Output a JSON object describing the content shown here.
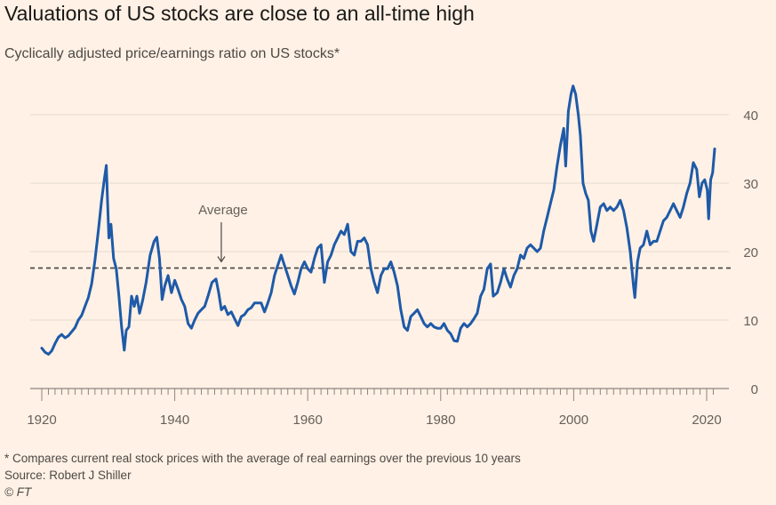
{
  "title": "Valuations of US stocks are close to an all-time high",
  "subtitle": "Cyclically adjusted price/earnings ratio on US stocks*",
  "footnote": "* Compares current real stock prices with the average of real earnings over the previous 10 years",
  "source": "Source: Robert J Shiller",
  "copyright": "© FT",
  "colors": {
    "background": "#FFF1E5",
    "series": "#1E5AA8",
    "grid": "#E6D9CE",
    "average_line": "#4D4845",
    "text": "#66605C"
  },
  "chart_data": {
    "type": "line",
    "title": "Valuations of US stocks are close to an all-time high",
    "subtitle": "Cyclically adjusted price/earnings ratio on US stocks*",
    "xlabel": "",
    "ylabel": "",
    "xlim": [
      1919,
      2022
    ],
    "ylim": [
      0,
      44
    ],
    "x_ticks": [
      1920,
      1940,
      1960,
      1980,
      2000,
      2020
    ],
    "y_ticks": [
      0,
      10,
      20,
      30,
      40
    ],
    "y_axis_position": "right",
    "grid": "horizontal",
    "average": {
      "label": "Average",
      "value": 17.6,
      "label_x": 1947
    },
    "series": [
      {
        "values": [
          [
            1920,
            5.9
          ],
          [
            1920.5,
            5.3
          ],
          [
            1921,
            5.0
          ],
          [
            1921.5,
            5.5
          ],
          [
            1922,
            6.6
          ],
          [
            1922.5,
            7.5
          ],
          [
            1923,
            7.9
          ],
          [
            1923.5,
            7.4
          ],
          [
            1924,
            7.7
          ],
          [
            1924.5,
            8.3
          ],
          [
            1925,
            8.9
          ],
          [
            1925.5,
            10.0
          ],
          [
            1926,
            10.7
          ],
          [
            1926.5,
            12.0
          ],
          [
            1927,
            13.3
          ],
          [
            1927.5,
            15.3
          ],
          [
            1928,
            18.7
          ],
          [
            1928.5,
            23.0
          ],
          [
            1929,
            27.5
          ],
          [
            1929.4,
            30.5
          ],
          [
            1929.7,
            32.6
          ],
          [
            1929.9,
            27.0
          ],
          [
            1930.1,
            22.0
          ],
          [
            1930.4,
            24.0
          ],
          [
            1930.8,
            19.0
          ],
          [
            1931.2,
            17.5
          ],
          [
            1931.6,
            13.5
          ],
          [
            1932,
            9.0
          ],
          [
            1932.4,
            5.6
          ],
          [
            1932.7,
            8.5
          ],
          [
            1933.1,
            9.0
          ],
          [
            1933.5,
            13.5
          ],
          [
            1933.9,
            12.0
          ],
          [
            1934.3,
            13.5
          ],
          [
            1934.7,
            11.0
          ],
          [
            1935.2,
            13.0
          ],
          [
            1935.7,
            15.5
          ],
          [
            1936.3,
            19.5
          ],
          [
            1936.9,
            21.5
          ],
          [
            1937.3,
            22.1
          ],
          [
            1937.7,
            19.0
          ],
          [
            1938.1,
            13.0
          ],
          [
            1938.5,
            15.0
          ],
          [
            1939,
            16.5
          ],
          [
            1939.5,
            14.0
          ],
          [
            1940,
            15.8
          ],
          [
            1940.5,
            14.5
          ],
          [
            1941,
            13.0
          ],
          [
            1941.5,
            12.0
          ],
          [
            1942,
            9.5
          ],
          [
            1942.5,
            8.8
          ],
          [
            1943,
            10.0
          ],
          [
            1943.5,
            11.0
          ],
          [
            1944,
            11.5
          ],
          [
            1944.5,
            12.0
          ],
          [
            1945,
            13.5
          ],
          [
            1945.6,
            15.5
          ],
          [
            1946.2,
            16.0
          ],
          [
            1946.6,
            14.0
          ],
          [
            1947,
            11.5
          ],
          [
            1947.5,
            12.0
          ],
          [
            1948,
            10.8
          ],
          [
            1948.5,
            11.2
          ],
          [
            1949,
            10.2
          ],
          [
            1949.5,
            9.2
          ],
          [
            1950,
            10.5
          ],
          [
            1950.5,
            10.8
          ],
          [
            1951,
            11.5
          ],
          [
            1951.5,
            11.8
          ],
          [
            1952,
            12.5
          ],
          [
            1952.5,
            12.5
          ],
          [
            1953,
            12.5
          ],
          [
            1953.5,
            11.2
          ],
          [
            1954,
            12.5
          ],
          [
            1954.5,
            14.0
          ],
          [
            1955,
            16.5
          ],
          [
            1955.5,
            18.0
          ],
          [
            1956,
            19.5
          ],
          [
            1956.5,
            18.0
          ],
          [
            1957,
            16.5
          ],
          [
            1957.5,
            15.0
          ],
          [
            1958,
            13.8
          ],
          [
            1958.5,
            15.5
          ],
          [
            1959,
            17.5
          ],
          [
            1959.5,
            18.5
          ],
          [
            1960,
            17.5
          ],
          [
            1960.5,
            17.0
          ],
          [
            1961,
            19.0
          ],
          [
            1961.5,
            20.5
          ],
          [
            1962,
            21.0
          ],
          [
            1962.5,
            15.5
          ],
          [
            1963,
            18.5
          ],
          [
            1963.5,
            19.5
          ],
          [
            1964,
            21.0
          ],
          [
            1964.5,
            22.0
          ],
          [
            1965,
            23.0
          ],
          [
            1965.5,
            22.5
          ],
          [
            1966,
            24.0
          ],
          [
            1966.5,
            20.0
          ],
          [
            1967,
            19.5
          ],
          [
            1967.5,
            21.5
          ],
          [
            1968,
            21.5
          ],
          [
            1968.5,
            22.0
          ],
          [
            1969,
            21.0
          ],
          [
            1969.5,
            17.5
          ],
          [
            1970,
            15.5
          ],
          [
            1970.5,
            14.0
          ],
          [
            1971,
            16.5
          ],
          [
            1971.5,
            17.5
          ],
          [
            1972,
            17.5
          ],
          [
            1972.5,
            18.5
          ],
          [
            1973,
            17.0
          ],
          [
            1973.5,
            15.0
          ],
          [
            1974,
            11.5
          ],
          [
            1974.5,
            9.0
          ],
          [
            1975,
            8.5
          ],
          [
            1975.5,
            10.5
          ],
          [
            1976,
            11.0
          ],
          [
            1976.5,
            11.5
          ],
          [
            1977,
            10.5
          ],
          [
            1977.5,
            9.5
          ],
          [
            1978,
            9.0
          ],
          [
            1978.5,
            9.5
          ],
          [
            1979,
            9.0
          ],
          [
            1979.5,
            8.8
          ],
          [
            1980,
            8.8
          ],
          [
            1980.5,
            9.5
          ],
          [
            1981,
            8.5
          ],
          [
            1981.5,
            8.0
          ],
          [
            1982,
            7.0
          ],
          [
            1982.5,
            6.9
          ],
          [
            1983,
            8.8
          ],
          [
            1983.5,
            9.5
          ],
          [
            1984,
            9.0
          ],
          [
            1984.5,
            9.5
          ],
          [
            1985,
            10.2
          ],
          [
            1985.5,
            11.0
          ],
          [
            1986,
            13.5
          ],
          [
            1986.5,
            14.5
          ],
          [
            1987,
            17.5
          ],
          [
            1987.5,
            18.2
          ],
          [
            1987.9,
            13.5
          ],
          [
            1988.5,
            14.0
          ],
          [
            1989,
            15.5
          ],
          [
            1989.5,
            17.5
          ],
          [
            1990,
            16.0
          ],
          [
            1990.5,
            14.8
          ],
          [
            1991,
            16.5
          ],
          [
            1991.5,
            17.5
          ],
          [
            1992,
            19.5
          ],
          [
            1992.5,
            19.0
          ],
          [
            1993,
            20.5
          ],
          [
            1993.5,
            21.0
          ],
          [
            1994,
            20.5
          ],
          [
            1994.5,
            20.0
          ],
          [
            1995,
            20.5
          ],
          [
            1995.5,
            23.0
          ],
          [
            1996,
            25.0
          ],
          [
            1996.5,
            27.0
          ],
          [
            1997,
            29.0
          ],
          [
            1997.5,
            32.5
          ],
          [
            1998,
            35.5
          ],
          [
            1998.5,
            38.0
          ],
          [
            1998.8,
            32.5
          ],
          [
            1999.2,
            40.5
          ],
          [
            1999.6,
            43.0
          ],
          [
            1999.9,
            44.2
          ],
          [
            2000.3,
            43.0
          ],
          [
            2000.7,
            40.0
          ],
          [
            2001,
            37.0
          ],
          [
            2001.4,
            30.0
          ],
          [
            2001.8,
            28.5
          ],
          [
            2002.2,
            27.5
          ],
          [
            2002.6,
            23.0
          ],
          [
            2003,
            21.5
          ],
          [
            2003.5,
            24.0
          ],
          [
            2004,
            26.5
          ],
          [
            2004.5,
            27.0
          ],
          [
            2005,
            26.0
          ],
          [
            2005.5,
            26.5
          ],
          [
            2006,
            26.0
          ],
          [
            2006.5,
            26.5
          ],
          [
            2007,
            27.5
          ],
          [
            2007.5,
            26.0
          ],
          [
            2008,
            23.5
          ],
          [
            2008.5,
            20.0
          ],
          [
            2009,
            15.0
          ],
          [
            2009.2,
            13.3
          ],
          [
            2009.6,
            18.5
          ],
          [
            2010,
            20.5
          ],
          [
            2010.5,
            21.0
          ],
          [
            2011,
            23.0
          ],
          [
            2011.5,
            21.0
          ],
          [
            2012,
            21.5
          ],
          [
            2012.5,
            21.5
          ],
          [
            2013,
            23.0
          ],
          [
            2013.5,
            24.5
          ],
          [
            2014,
            25.0
          ],
          [
            2014.5,
            26.0
          ],
          [
            2015,
            27.0
          ],
          [
            2015.5,
            26.0
          ],
          [
            2016,
            25.0
          ],
          [
            2016.5,
            26.5
          ],
          [
            2017,
            28.5
          ],
          [
            2017.5,
            30.0
          ],
          [
            2018,
            33.0
          ],
          [
            2018.5,
            32.0
          ],
          [
            2018.9,
            28.0
          ],
          [
            2019.3,
            30.0
          ],
          [
            2019.7,
            30.5
          ],
          [
            2020.1,
            29.0
          ],
          [
            2020.3,
            24.8
          ],
          [
            2020.6,
            30.5
          ],
          [
            2020.9,
            31.5
          ],
          [
            2021.2,
            35.0
          ]
        ]
      }
    ]
  }
}
